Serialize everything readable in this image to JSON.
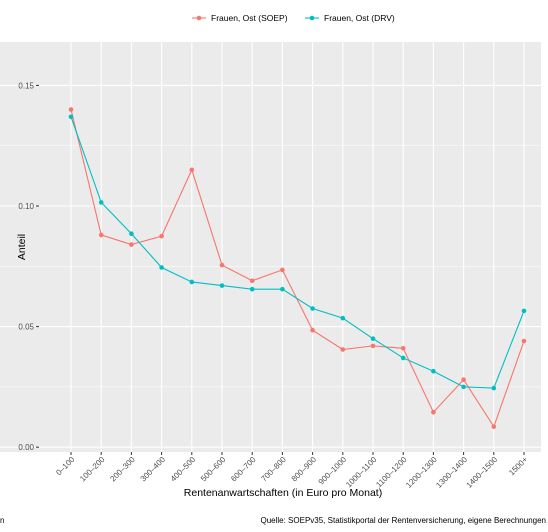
{
  "chart_data": {
    "type": "line",
    "xlabel": "Rentenanwartschaften (in Euro pro Monat)",
    "ylabel": "Anteil",
    "categories": [
      "0–100",
      "100–200",
      "200–300",
      "300–400",
      "400–500",
      "500–600",
      "600–700",
      "700–800",
      "800–900",
      "900–1000",
      "1000–1100",
      "1100–1200",
      "1200–1300",
      "1300–1400",
      "1400–1500",
      "1500+"
    ],
    "ylim": [
      -0.002,
      0.168
    ],
    "yticks": [
      0.0,
      0.05,
      0.1,
      0.15
    ],
    "ytick_labels": [
      "0.00",
      "0.05",
      "0.10",
      "0.15"
    ],
    "grid": true,
    "legend_position": "top",
    "series": [
      {
        "name": "Frauen, Ost (SOEP)",
        "color": "#F8766D",
        "values": [
          0.14,
          0.088,
          0.084,
          0.0875,
          0.115,
          0.0755,
          0.069,
          0.0735,
          0.0485,
          0.0405,
          0.042,
          0.041,
          0.0145,
          0.028,
          0.0085,
          0.044
        ]
      },
      {
        "name": "Frauen, Ost (DRV)",
        "color": "#00BFC4",
        "values": [
          0.137,
          0.1015,
          0.0885,
          0.0745,
          0.0685,
          0.067,
          0.0655,
          0.0655,
          0.0575,
          0.0535,
          0.045,
          0.037,
          0.0315,
          0.025,
          0.0245,
          0.0565
        ]
      }
    ]
  },
  "caption": {
    "source": "Quelle: SOEPv35, Statistikportal der Rentenversicherung, eigene Berechnungen",
    "left_fragment": "n"
  }
}
